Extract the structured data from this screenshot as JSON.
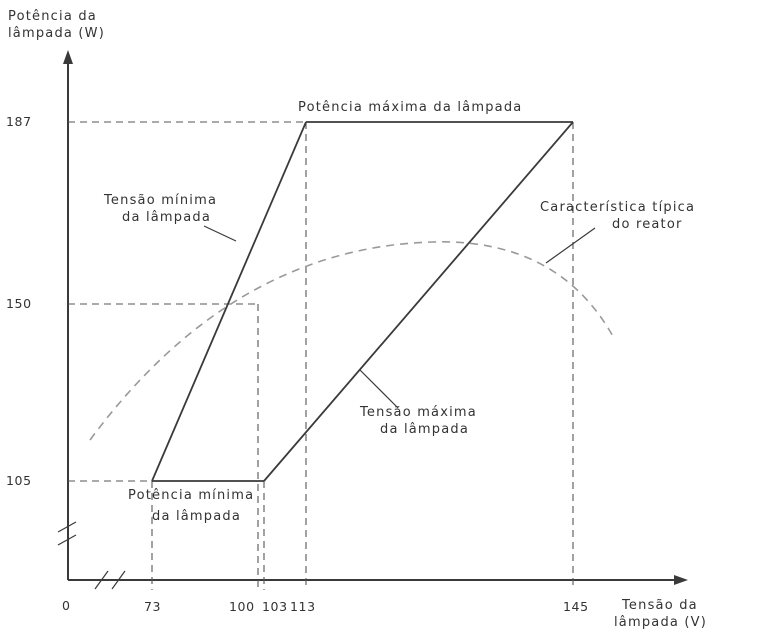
{
  "axes": {
    "y_title": [
      "Potência da",
      "lâmpada (W)"
    ],
    "x_title": [
      "Tensão da",
      "lâmpada (V)"
    ],
    "origin_label": "0",
    "y_ticks": [
      {
        "value": 187,
        "label": "187"
      },
      {
        "value": 150,
        "label": "150"
      },
      {
        "value": 105,
        "label": "105"
      }
    ],
    "x_ticks": [
      {
        "value": 73,
        "label": "73"
      },
      {
        "value": 100,
        "label": "100"
      },
      {
        "value": 103,
        "label": "103"
      },
      {
        "value": 113,
        "label": "113"
      },
      {
        "value": 145,
        "label": "145"
      }
    ]
  },
  "annotations": {
    "max_power": "Potência máxima da lâmpada",
    "min_voltage": [
      "Tensão mínima",
      "da lâmpada"
    ],
    "reactor": [
      "Característica típica",
      "do reator"
    ],
    "max_voltage": [
      "Tensão máxima",
      "da lâmpada"
    ],
    "min_power": [
      "Potência mínima",
      "da lâmpada"
    ]
  },
  "envelope_points": [
    {
      "v": 73,
      "w": 105
    },
    {
      "v": 113,
      "w": 187
    },
    {
      "v": 145,
      "w": 187
    },
    {
      "v": 103,
      "w": 105
    }
  ],
  "reactor_curve": [
    {
      "v": 78,
      "w": 115
    },
    {
      "v": 100,
      "w": 150
    },
    {
      "v": 128,
      "w": 160
    },
    {
      "v": 150,
      "w": 132
    }
  ]
}
